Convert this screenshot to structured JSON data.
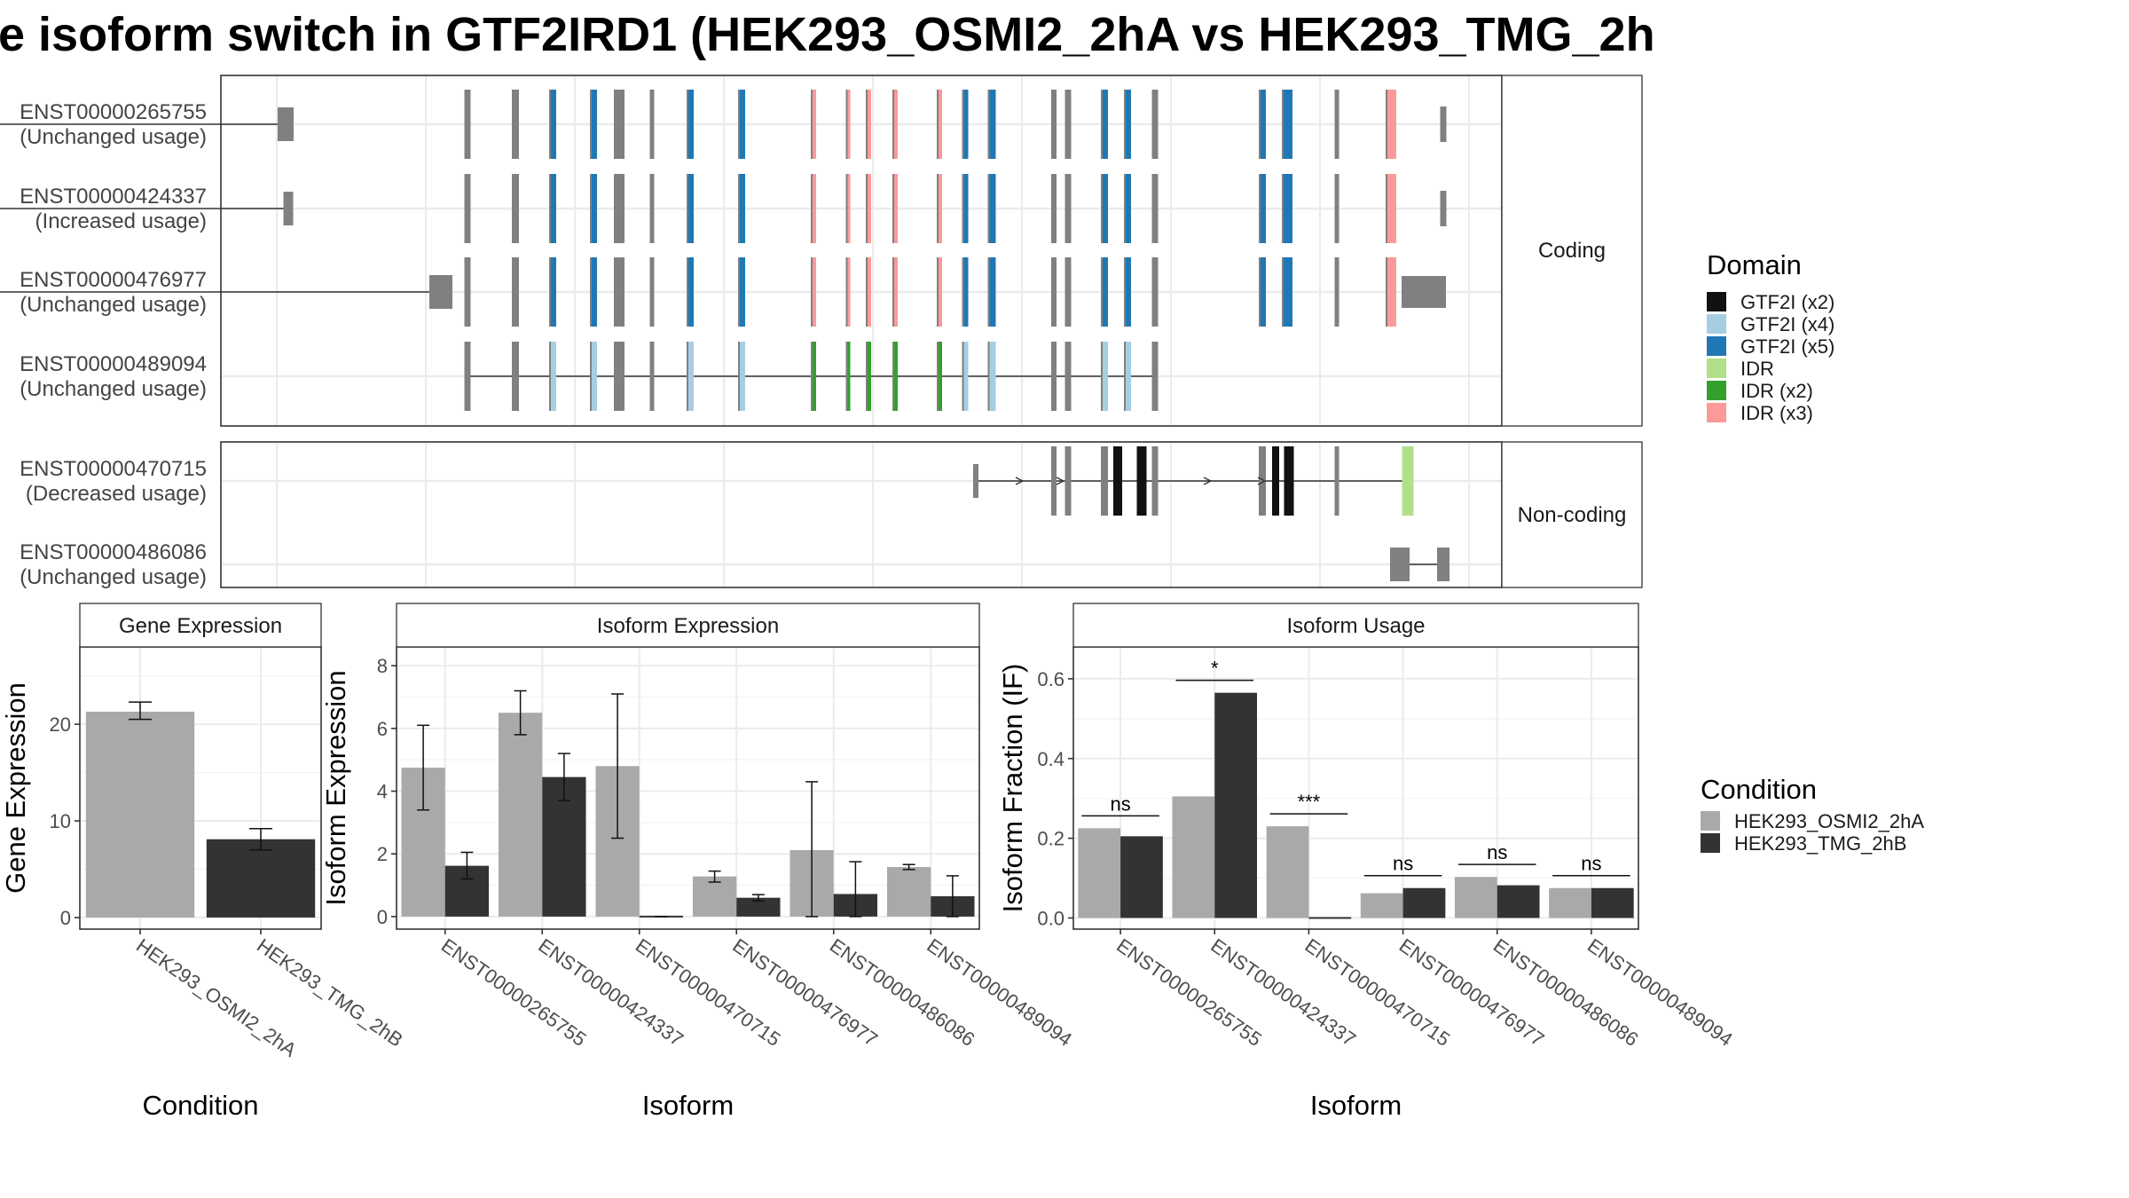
{
  "title": "e isoform switch in GTF2IRD1 (HEK293_OSMI2_2hA vs HEK293_TMG_2h",
  "colors": {
    "exon": "#808080",
    "condA": "#a9a9a9",
    "condB": "#333333",
    "domains": {
      "GTF2I (x2)": "#111111",
      "GTF2I (x4)": "#a6cee3",
      "GTF2I (x5)": "#1f78b4",
      "IDR": "#b2df8a",
      "IDR (x2)": "#33a02c",
      "IDR (x3)": "#fb9a99"
    }
  },
  "panels": {
    "coding_strip": "Coding",
    "noncoding_strip": "Non-coding",
    "gene_expression_strip": "Gene Expression",
    "isoform_expression_strip": "Isoform Expression",
    "isoform_usage_strip": "Isoform Usage"
  },
  "transcripts": [
    {
      "id": "ENST00000265755",
      "usage": "(Unchanged usage)",
      "group": "coding"
    },
    {
      "id": "ENST00000424337",
      "usage": "(Increased usage)",
      "group": "coding"
    },
    {
      "id": "ENST00000476977",
      "usage": "(Unchanged usage)",
      "group": "coding"
    },
    {
      "id": "ENST00000489094",
      "usage": "(Unchanged usage)",
      "group": "coding"
    },
    {
      "id": "ENST00000470715",
      "usage": "(Decreased usage)",
      "group": "noncoding"
    },
    {
      "id": "ENST00000486086",
      "usage": "(Unchanged usage)",
      "group": "noncoding"
    }
  ],
  "domain_legend": {
    "title": "Domain",
    "items": [
      "GTF2I (x2)",
      "GTF2I (x4)",
      "GTF2I (x5)",
      "IDR",
      "IDR (x2)",
      "IDR (x3)"
    ]
  },
  "condition_legend": {
    "title": "Condition",
    "items": [
      "HEK293_OSMI2_2hA",
      "HEK293_TMG_2hB"
    ]
  },
  "chart_data": [
    {
      "type": "bar",
      "title": "Gene Expression",
      "xlabel": "Condition",
      "ylabel": "Gene Expression",
      "categories": [
        "HEK293_OSMI2_2hA",
        "HEK293_TMG_2hB"
      ],
      "values": [
        21.3,
        8.1
      ],
      "errors": [
        [
          20.5,
          22.3
        ],
        [
          7.0,
          9.2
        ]
      ],
      "yticks": [
        0,
        10,
        20
      ],
      "ylim": [
        -1.2,
        28
      ]
    },
    {
      "type": "bar",
      "title": "Isoform Expression",
      "xlabel": "Isoform",
      "ylabel": "Isoform Expression",
      "categories": [
        "ENST00000265755",
        "ENST00000424337",
        "ENST00000470715",
        "ENST00000476977",
        "ENST00000486086",
        "ENST00000489094"
      ],
      "series": [
        {
          "name": "HEK293_OSMI2_2hA",
          "values": [
            4.75,
            6.5,
            4.8,
            1.28,
            2.12,
            1.58
          ],
          "errors": [
            [
              3.4,
              6.1
            ],
            [
              5.8,
              7.2
            ],
            [
              2.5,
              7.1
            ],
            [
              1.1,
              1.45
            ],
            [
              0.0,
              4.3
            ],
            [
              1.5,
              1.66
            ]
          ]
        },
        {
          "name": "HEK293_TMG_2hB",
          "values": [
            1.62,
            4.45,
            0.0,
            0.6,
            0.72,
            0.65
          ],
          "errors": [
            [
              1.2,
              2.05
            ],
            [
              3.7,
              5.2
            ],
            [
              0.0,
              0.0
            ],
            [
              0.5,
              0.7
            ],
            [
              0.0,
              1.75
            ],
            [
              0.0,
              1.3
            ]
          ]
        }
      ],
      "yticks": [
        0,
        2,
        4,
        6,
        8
      ],
      "ylim": [
        -0.4,
        8.6
      ]
    },
    {
      "type": "bar",
      "title": "Isoform Usage",
      "xlabel": "Isoform",
      "ylabel": "Isoform Fraction (IF)",
      "categories": [
        "ENST00000265755",
        "ENST00000424337",
        "ENST00000470715",
        "ENST00000476977",
        "ENST00000486086",
        "ENST00000489094"
      ],
      "series": [
        {
          "name": "HEK293_OSMI2_2hA",
          "values": [
            0.225,
            0.305,
            0.23,
            0.062,
            0.103,
            0.075
          ]
        },
        {
          "name": "HEK293_TMG_2hB",
          "values": [
            0.205,
            0.565,
            0.0,
            0.075,
            0.082,
            0.075
          ]
        }
      ],
      "significance": [
        "ns",
        "*",
        "***",
        "ns",
        "ns",
        "ns"
      ],
      "yticks": [
        0.0,
        0.2,
        0.4,
        0.6
      ],
      "ylim": [
        -0.028,
        0.68
      ]
    }
  ]
}
